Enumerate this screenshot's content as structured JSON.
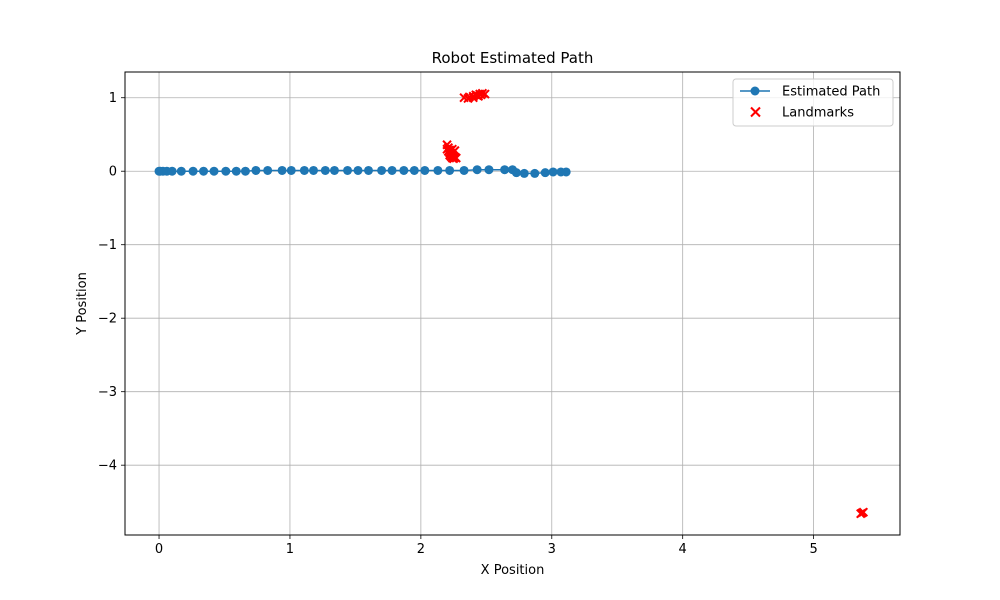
{
  "chart_data": {
    "type": "scatter",
    "title": "Robot Estimated Path",
    "xlabel": "X Position",
    "ylabel": "Y Position",
    "xlim": [
      -0.26,
      5.66
    ],
    "ylim": [
      -4.95,
      1.35
    ],
    "xticks": [
      0,
      1,
      2,
      3,
      4,
      5
    ],
    "yticks": [
      1,
      0,
      -1,
      -2,
      -3,
      -4
    ],
    "xtick_labels": [
      "0",
      "1",
      "2",
      "3",
      "4",
      "5"
    ],
    "ytick_labels": [
      "1",
      "0",
      "−1",
      "−2",
      "−3",
      "−4"
    ],
    "grid": true,
    "legend_position": "top-right",
    "colors": {
      "path": "#1f77b4",
      "landmarks": "#ff0000",
      "grid": "#b0b0b0",
      "axes": "#000000"
    },
    "series": [
      {
        "name": "Estimated Path",
        "kind": "line-marker",
        "points": [
          [
            0.0,
            0.0
          ],
          [
            0.01,
            0.0
          ],
          [
            0.03,
            0.0
          ],
          [
            0.06,
            0.0
          ],
          [
            0.1,
            0.0
          ],
          [
            0.17,
            0.0
          ],
          [
            0.26,
            0.0
          ],
          [
            0.34,
            0.0
          ],
          [
            0.42,
            0.0
          ],
          [
            0.51,
            0.0
          ],
          [
            0.59,
            0.0
          ],
          [
            0.66,
            0.0
          ],
          [
            0.74,
            0.01
          ],
          [
            0.83,
            0.01
          ],
          [
            0.94,
            0.01
          ],
          [
            1.01,
            0.01
          ],
          [
            1.11,
            0.01
          ],
          [
            1.18,
            0.01
          ],
          [
            1.27,
            0.01
          ],
          [
            1.34,
            0.01
          ],
          [
            1.44,
            0.01
          ],
          [
            1.52,
            0.01
          ],
          [
            1.6,
            0.01
          ],
          [
            1.7,
            0.01
          ],
          [
            1.78,
            0.01
          ],
          [
            1.87,
            0.01
          ],
          [
            1.95,
            0.01
          ],
          [
            2.03,
            0.01
          ],
          [
            2.13,
            0.01
          ],
          [
            2.22,
            0.01
          ],
          [
            2.33,
            0.01
          ],
          [
            2.43,
            0.02
          ],
          [
            2.52,
            0.02
          ],
          [
            2.64,
            0.02
          ],
          [
            2.7,
            0.02
          ],
          [
            2.73,
            -0.02
          ],
          [
            2.79,
            -0.03
          ],
          [
            2.87,
            -0.03
          ],
          [
            2.95,
            -0.02
          ],
          [
            3.01,
            -0.01
          ],
          [
            3.07,
            -0.01
          ],
          [
            3.11,
            -0.01
          ]
        ]
      },
      {
        "name": "Landmarks",
        "kind": "x-marker",
        "points": [
          [
            2.33,
            1.0
          ],
          [
            2.37,
            1.01
          ],
          [
            2.4,
            1.02
          ],
          [
            2.42,
            1.04
          ],
          [
            2.43,
            1.03
          ],
          [
            2.45,
            1.05
          ],
          [
            2.46,
            1.04
          ],
          [
            2.47,
            1.06
          ],
          [
            2.49,
            1.05
          ],
          [
            2.36,
            0.99
          ],
          [
            2.4,
            1.0
          ],
          [
            2.44,
            1.02
          ],
          [
            2.2,
            0.36
          ],
          [
            2.21,
            0.32
          ],
          [
            2.2,
            0.3
          ],
          [
            2.22,
            0.29
          ],
          [
            2.21,
            0.27
          ],
          [
            2.22,
            0.25
          ],
          [
            2.23,
            0.24
          ],
          [
            2.22,
            0.22
          ],
          [
            2.24,
            0.22
          ],
          [
            2.23,
            0.2
          ],
          [
            2.25,
            0.2
          ],
          [
            2.24,
            0.18
          ],
          [
            2.26,
            0.19
          ],
          [
            2.25,
            0.17
          ],
          [
            2.27,
            0.18
          ],
          [
            2.26,
            0.28
          ],
          [
            2.24,
            0.3
          ],
          [
            5.37,
            -4.65
          ],
          [
            5.38,
            -4.64
          ],
          [
            5.36,
            -4.66
          ]
        ]
      }
    ]
  }
}
